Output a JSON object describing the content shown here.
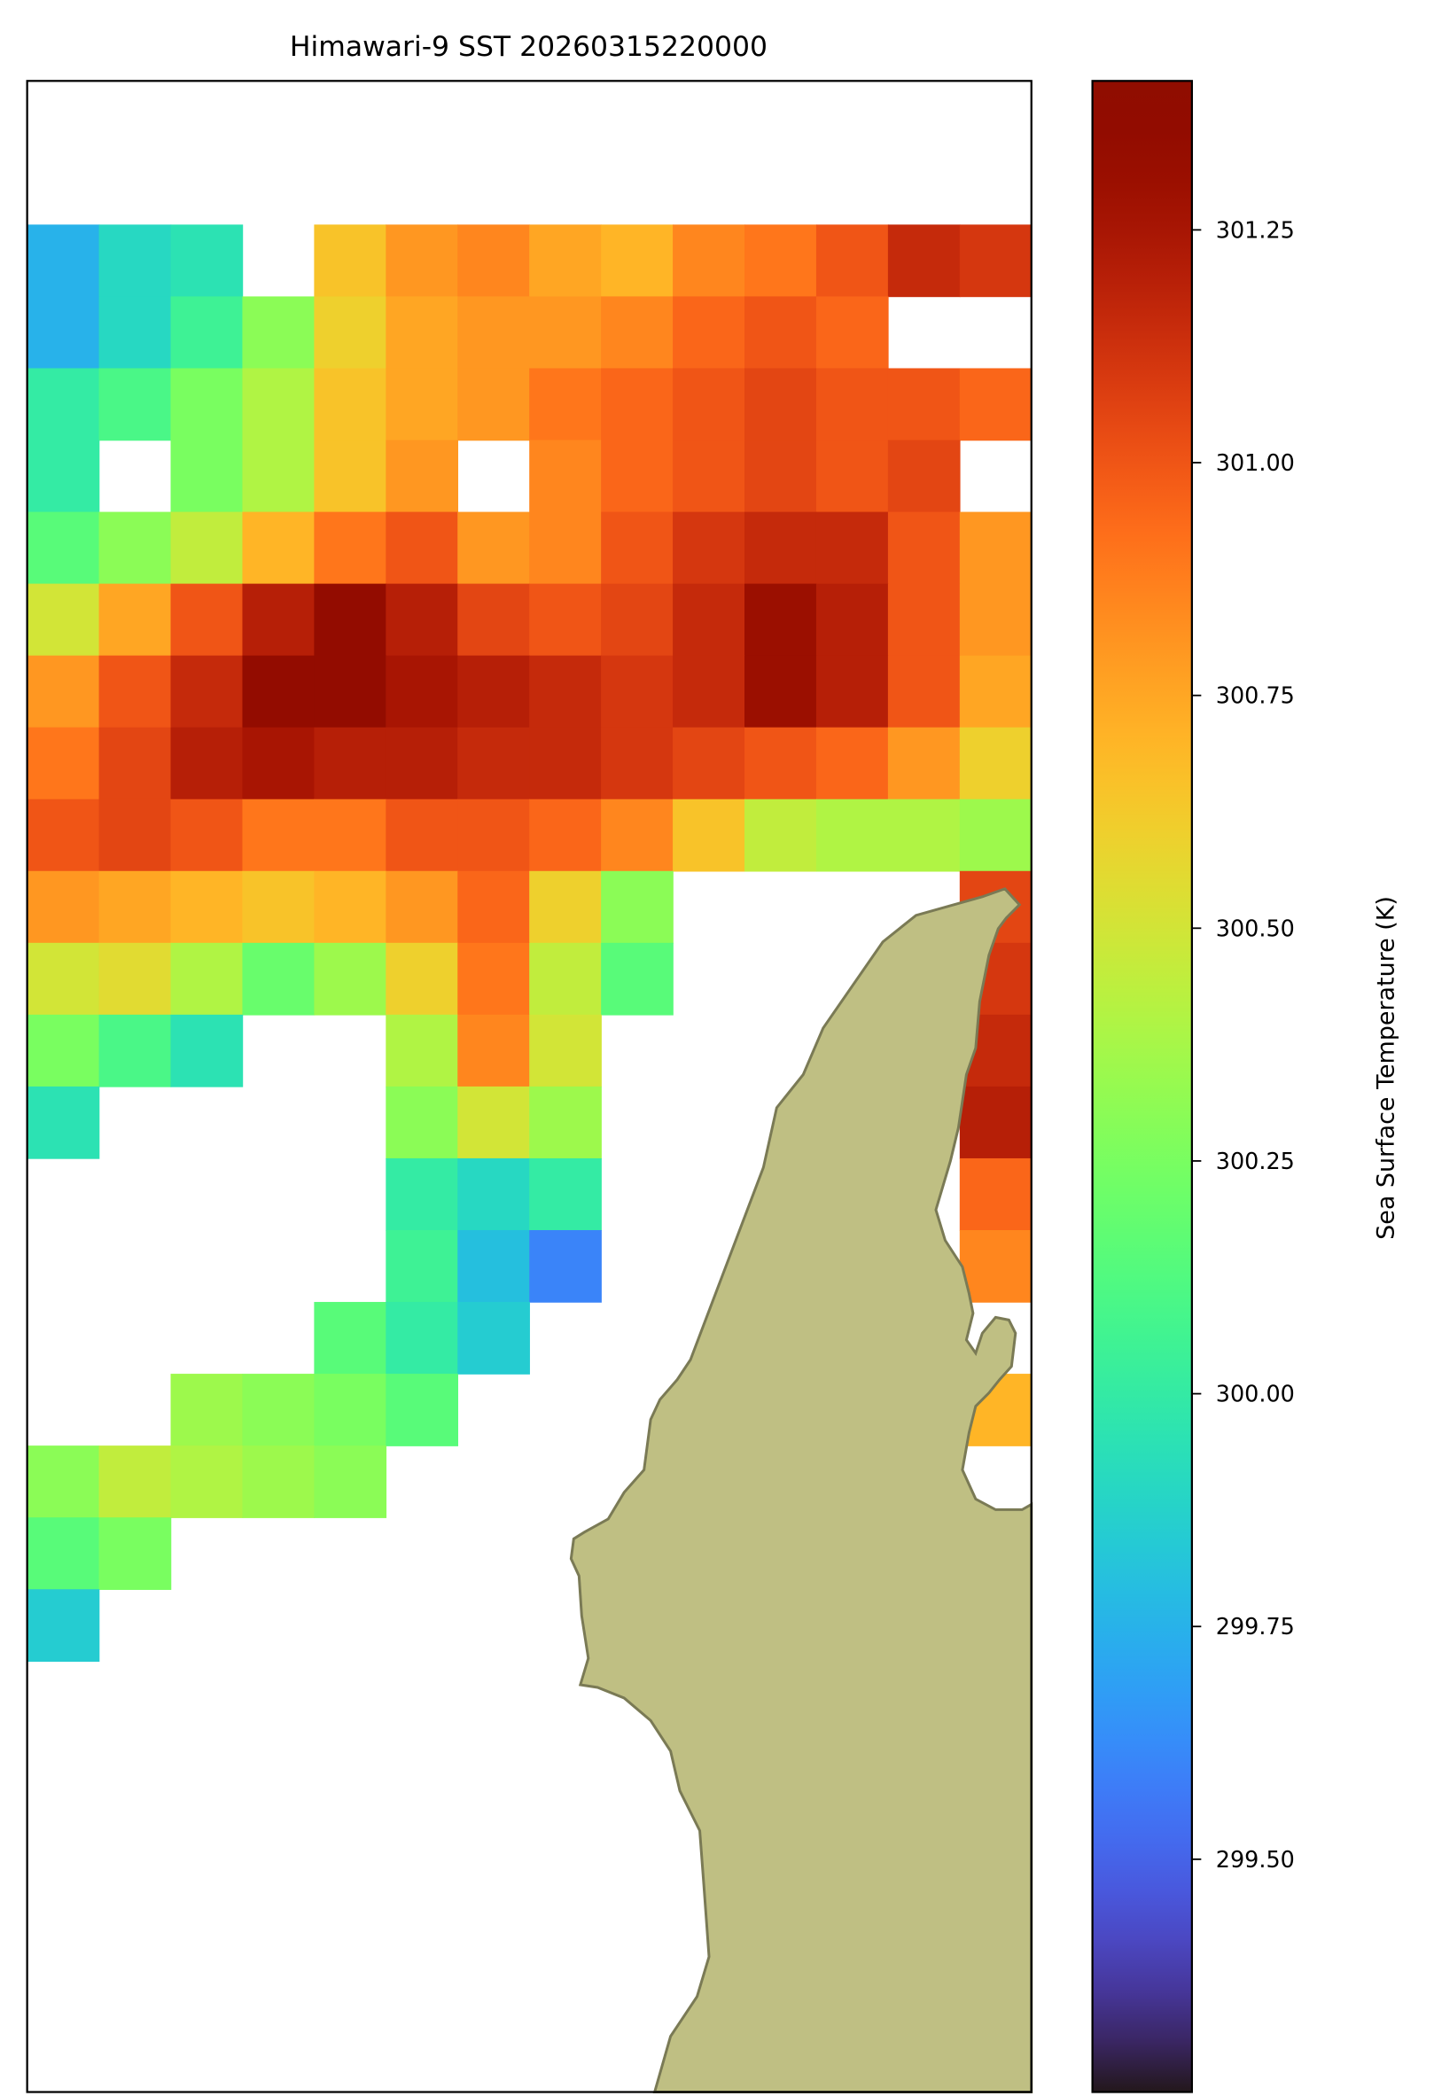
{
  "chart_data": {
    "type": "heatmap",
    "title": "Himawari-9 SST 20260315220000",
    "colorbar_label": "Sea Surface Temperature (K)",
    "colormap": "turbo",
    "clim": [
      299.25,
      301.41
    ],
    "cticks": [
      {
        "value": 299.5,
        "label": "299.50"
      },
      299.75,
      {
        "value": 300,
        "label": "300.00"
      },
      300.25,
      {
        "value": 300.5,
        "label": "300.50"
      },
      300.75,
      {
        "value": 301,
        "label": "301.00"
      },
      301.25
    ],
    "z": [
      [
        null,
        null,
        null,
        null,
        null,
        null,
        null,
        null,
        null,
        null,
        null,
        null,
        null,
        null
      ],
      [
        null,
        null,
        null,
        null,
        null,
        null,
        null,
        null,
        null,
        null,
        null,
        null,
        null,
        null
      ],
      [
        299.75,
        299.9,
        299.95,
        null,
        300.65,
        300.8,
        300.85,
        300.75,
        300.7,
        300.85,
        300.9,
        301.0,
        301.15,
        301.1
      ],
      [
        299.75,
        299.9,
        300.05,
        300.3,
        300.6,
        300.75,
        300.8,
        300.8,
        300.85,
        300.95,
        301.0,
        300.95,
        null,
        null
      ],
      [
        300.0,
        300.1,
        300.25,
        300.4,
        300.65,
        300.75,
        300.8,
        300.9,
        300.95,
        301.0,
        301.05,
        301.0,
        301.0,
        300.95
      ],
      [
        300.0,
        null,
        300.25,
        300.4,
        300.65,
        300.8,
        null,
        300.85,
        300.95,
        301.0,
        301.05,
        301.0,
        301.05,
        null
      ],
      [
        300.15,
        300.3,
        300.45,
        300.7,
        300.9,
        301.0,
        300.8,
        300.85,
        301.0,
        301.1,
        301.15,
        301.15,
        301.0,
        300.8
      ],
      [
        300.5,
        300.75,
        301.0,
        301.2,
        301.35,
        301.2,
        301.05,
        301.0,
        301.05,
        301.15,
        301.3,
        301.2,
        301.0,
        300.8
      ],
      [
        300.8,
        301.0,
        301.15,
        301.35,
        301.35,
        301.25,
        301.2,
        301.15,
        301.1,
        301.15,
        301.3,
        301.2,
        301.0,
        300.75
      ],
      [
        300.9,
        301.05,
        301.2,
        301.25,
        301.2,
        301.2,
        301.15,
        301.15,
        301.1,
        301.05,
        301.0,
        300.95,
        300.8,
        300.6
      ],
      [
        301.0,
        301.05,
        301.0,
        300.9,
        300.9,
        301.0,
        301.0,
        300.95,
        300.85,
        300.65,
        300.45,
        300.4,
        300.4,
        300.35
      ],
      [
        300.8,
        300.75,
        300.7,
        300.65,
        300.7,
        300.8,
        300.95,
        300.6,
        300.3,
        null,
        null,
        null,
        null,
        301.05
      ],
      [
        300.5,
        300.55,
        300.4,
        300.2,
        300.35,
        300.6,
        300.9,
        300.45,
        300.15,
        null,
        null,
        null,
        null,
        301.1
      ],
      [
        300.25,
        300.1,
        299.95,
        null,
        null,
        300.4,
        300.85,
        300.5,
        null,
        null,
        null,
        null,
        null,
        301.15
      ],
      [
        299.95,
        null,
        null,
        null,
        null,
        300.3,
        300.5,
        300.35,
        null,
        null,
        null,
        null,
        null,
        301.2
      ],
      [
        null,
        null,
        null,
        null,
        null,
        300.0,
        299.9,
        300.0,
        null,
        null,
        null,
        null,
        null,
        300.95
      ],
      [
        null,
        null,
        null,
        null,
        null,
        300.05,
        299.8,
        299.6,
        null,
        null,
        null,
        null,
        null,
        300.85
      ],
      [
        null,
        null,
        null,
        null,
        300.15,
        300.0,
        299.85,
        null,
        null,
        null,
        null,
        null,
        null,
        null
      ],
      [
        null,
        null,
        300.35,
        300.3,
        300.25,
        300.15,
        null,
        null,
        null,
        null,
        null,
        null,
        null,
        300.7
      ],
      [
        300.3,
        300.45,
        300.4,
        300.35,
        300.3,
        null,
        null,
        null,
        null,
        null,
        null,
        null,
        null,
        null
      ],
      [
        300.15,
        300.25,
        null,
        null,
        null,
        null,
        null,
        null,
        null,
        null,
        null,
        null,
        null,
        null
      ],
      [
        299.85,
        null,
        null,
        null,
        null,
        null,
        null,
        null,
        null,
        null,
        null,
        null,
        null,
        null
      ],
      [
        null,
        null,
        null,
        null,
        null,
        null,
        null,
        null,
        null,
        null,
        null,
        null,
        null,
        null
      ],
      [
        null,
        null,
        null,
        null,
        null,
        null,
        null,
        null,
        null,
        null,
        null,
        null,
        null,
        null
      ],
      [
        null,
        null,
        null,
        null,
        null,
        null,
        null,
        null,
        null,
        null,
        null,
        null,
        null,
        null
      ],
      [
        null,
        null,
        null,
        null,
        null,
        null,
        null,
        null,
        null,
        null,
        null,
        null,
        null,
        null
      ],
      [
        null,
        null,
        null,
        null,
        null,
        null,
        null,
        null,
        null,
        null,
        null,
        null,
        null,
        null
      ],
      [
        null,
        null,
        null,
        null,
        null,
        null,
        null,
        null,
        null,
        null,
        null,
        null,
        null,
        null
      ]
    ]
  }
}
